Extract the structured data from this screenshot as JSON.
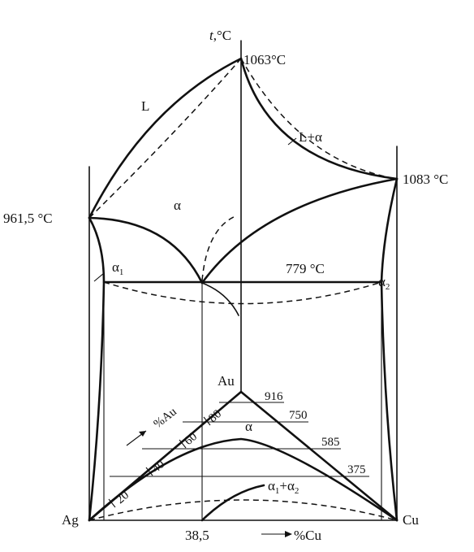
{
  "axis": {
    "temperature_t": "t",
    "temperature_unit": ",°C",
    "cu_arrow_label": "%Cu",
    "au_arrow_label": "%Au"
  },
  "points": {
    "au_melt": "1063°C",
    "cu_melt": "1083 °C",
    "ag_melt": "961,5 °C",
    "eutectic": "779 °C",
    "eutectic_comp": "38,5"
  },
  "regions": {
    "liquid": "L",
    "liquid_alpha": "L+α",
    "alpha_top": "α",
    "alpha1_base": "α",
    "alpha1_sub": "1",
    "alpha2_base": "α",
    "alpha2_sub": "2",
    "alpha_bottom": "α",
    "two_phase_a": "α",
    "two_phase_sub1": "1",
    "two_phase_plus": "+α",
    "two_phase_sub2": "2"
  },
  "corners": {
    "au": "Au",
    "ag": "Ag",
    "cu": "Cu"
  },
  "au_ticks": [
    "20",
    "40",
    "60",
    "80"
  ],
  "fineness": [
    "916",
    "750",
    "585",
    "375"
  ]
}
